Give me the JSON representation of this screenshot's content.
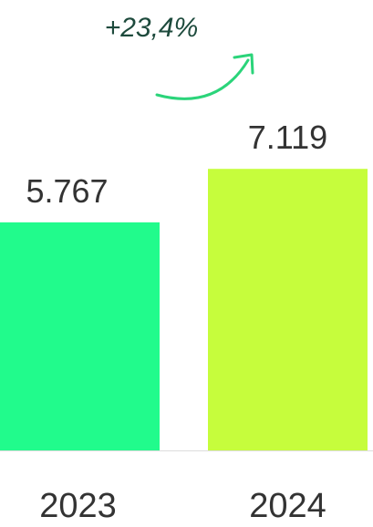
{
  "chart_data": {
    "type": "bar",
    "categories": [
      "2023",
      "2024"
    ],
    "values": [
      5767,
      7119
    ],
    "value_labels": [
      "5.767",
      "7.119"
    ],
    "colors": [
      "#21fb8c",
      "#c6fd3c"
    ],
    "ylim": [
      0,
      8000
    ],
    "annotation": "+23,4%"
  }
}
